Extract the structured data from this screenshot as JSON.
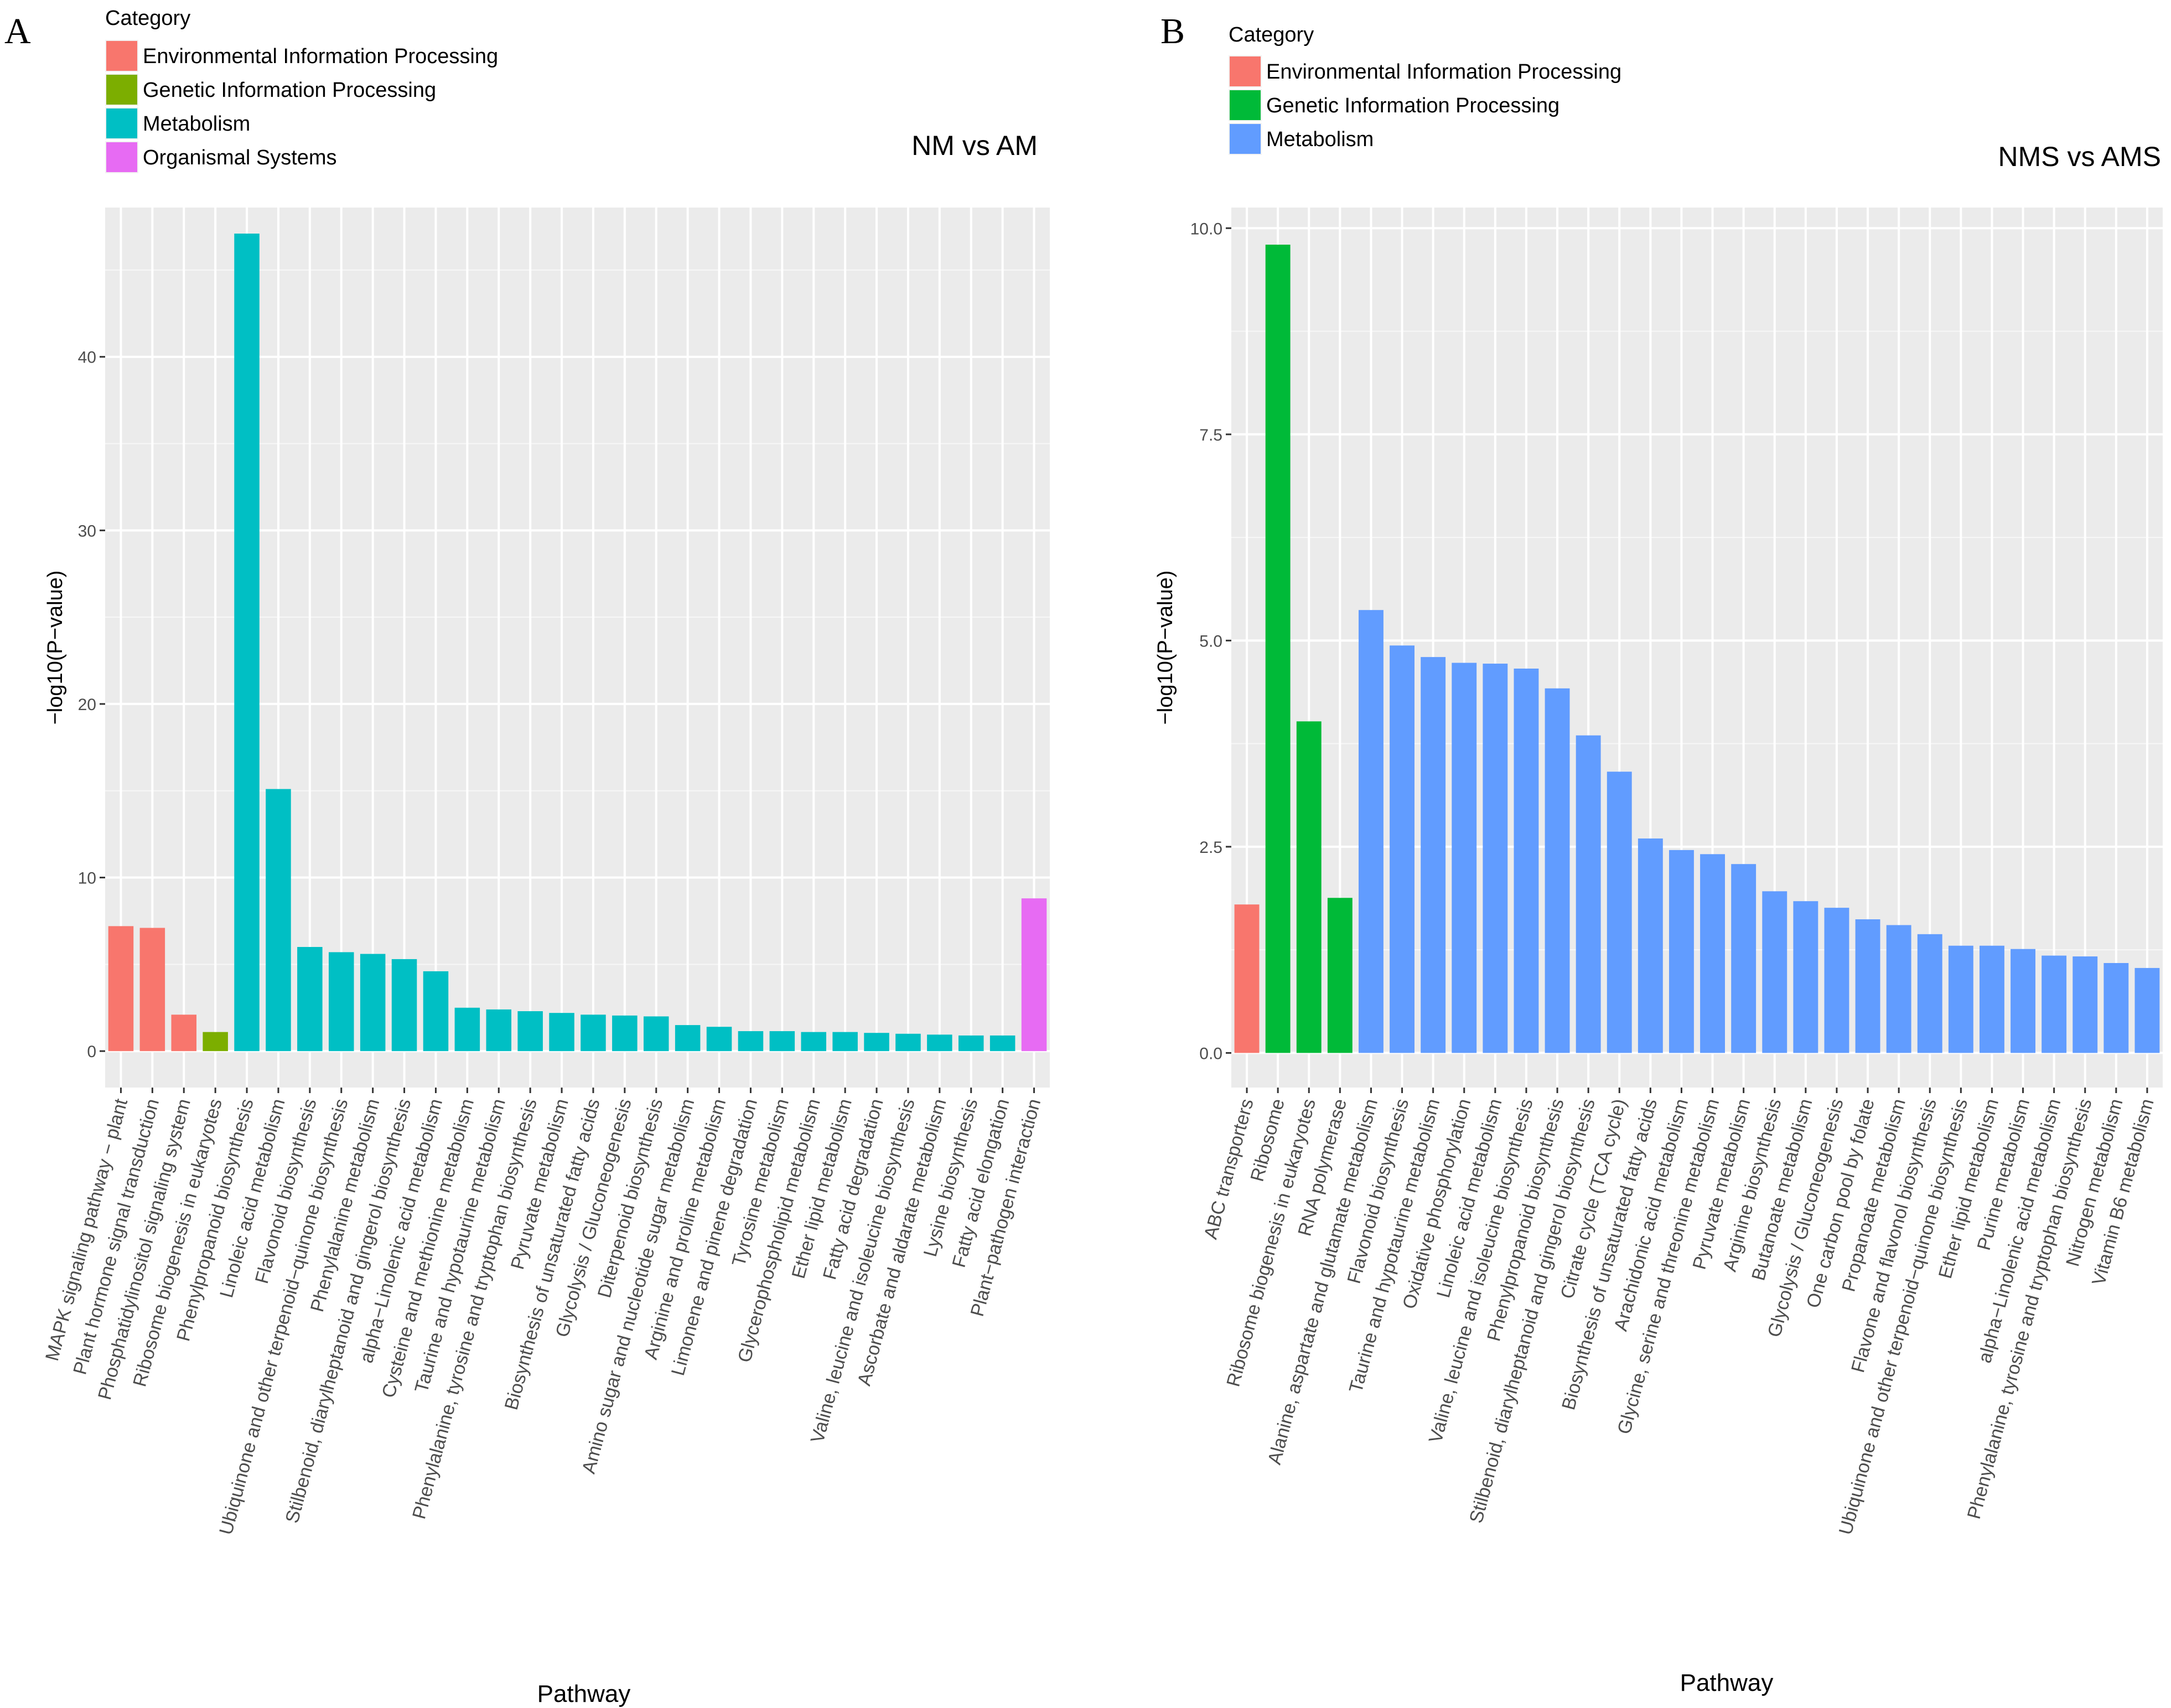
{
  "chart_data": [
    {
      "type": "bar",
      "panel_label": "A",
      "title": "NM vs AM",
      "xlabel": "Pathway",
      "ylabel": "−log10(P−value)",
      "ylim": [
        -2.1,
        48.6
      ],
      "yticks": [
        0,
        10,
        20,
        30,
        40
      ],
      "grid": true,
      "legend_title": "Category",
      "legend_position": "top-left",
      "legend": [
        {
          "label": "Environmental Information Processing",
          "color": "#F8766D"
        },
        {
          "label": "Genetic Information Processing",
          "color": "#7CAE00"
        },
        {
          "label": "Metabolism",
          "color": "#00BFC4"
        },
        {
          "label": "Organismal Systems",
          "color": "#E76BF3"
        }
      ],
      "categories": [
        "MAPK signaling pathway − plant",
        "Plant hormone signal transduction",
        "Phosphatidylinositol signaling system",
        "Ribosome biogenesis in eukaryotes",
        "Phenylpropanoid biosynthesis",
        "Linoleic acid metabolism",
        "Flavonoid biosynthesis",
        "Ubiquinone and other terpenoid−quinone biosynthesis",
        "Phenylalanine metabolism",
        "Stilbenoid, diarylheptanoid and gingerol biosynthesis",
        "alpha−Linolenic acid metabolism",
        "Cysteine and methionine metabolism",
        "Taurine and hypotaurine metabolism",
        "Phenylalanine, tyrosine and tryptophan biosynthesis",
        "Pyruvate metabolism",
        "Biosynthesis of unsaturated fatty acids",
        "Glycolysis / Gluconeogenesis",
        "Diterpenoid biosynthesis",
        "Amino sugar and nucleotide sugar metabolism",
        "Arginine and proline metabolism",
        "Limonene and pinene degradation",
        "Tyrosine metabolism",
        "Glycerophospholipid metabolism",
        "Ether lipid metabolism",
        "Fatty acid degradation",
        "Valine, leucine and isoleucine biosynthesis",
        "Ascorbate and aldarate metabolism",
        "Lysine biosynthesis",
        "Fatty acid elongation",
        "Plant−pathogen interaction"
      ],
      "values": [
        7.2,
        7.1,
        2.1,
        1.1,
        47.1,
        15.1,
        6.0,
        5.7,
        5.6,
        5.3,
        4.6,
        2.5,
        2.4,
        2.3,
        2.2,
        2.1,
        2.05,
        2.0,
        1.5,
        1.4,
        1.15,
        1.15,
        1.1,
        1.1,
        1.05,
        1.0,
        0.95,
        0.9,
        0.9,
        8.8
      ],
      "category_index": [
        0,
        0,
        0,
        1,
        2,
        2,
        2,
        2,
        2,
        2,
        2,
        2,
        2,
        2,
        2,
        2,
        2,
        2,
        2,
        2,
        2,
        2,
        2,
        2,
        2,
        2,
        2,
        2,
        2,
        3
      ]
    },
    {
      "type": "bar",
      "panel_label": "B",
      "title": "NMS vs AMS",
      "xlabel": "Pathway",
      "ylabel": "−log10(P−value)",
      "ylim": [
        -0.42,
        10.25
      ],
      "yticks": [
        "0.0",
        "2.5",
        "5.0",
        "7.5",
        "10.0"
      ],
      "grid": true,
      "legend_title": "Category",
      "legend_position": "top-left",
      "legend": [
        {
          "label": "Environmental Information Processing",
          "color": "#F8766D"
        },
        {
          "label": "Genetic Information Processing",
          "color": "#00BA38"
        },
        {
          "label": "Metabolism",
          "color": "#619CFF"
        }
      ],
      "categories": [
        "ABC transporters",
        "Ribosome",
        "Ribosome biogenesis in eukaryotes",
        "RNA polymerase",
        "Alanine, aspartate and glutamate metabolism",
        "Flavonoid biosynthesis",
        "Taurine and hypotaurine metabolism",
        "Oxidative phosphorylation",
        "Linoleic acid metabolism",
        "Valine, leucine and isoleucine biosynthesis",
        "Phenylpropanoid biosynthesis",
        "Stilbenoid, diarylheptanoid and gingerol biosynthesis",
        "Citrate cycle (TCA cycle)",
        "Biosynthesis of unsaturated fatty acids",
        "Arachidonic acid metabolism",
        "Glycine, serine and threonine metabolism",
        "Pyruvate metabolism",
        "Arginine biosynthesis",
        "Butanoate metabolism",
        "Glycolysis / Gluconeogenesis",
        "One carbon pool by folate",
        "Propanoate metabolism",
        "Flavone and flavonol biosynthesis",
        "Ubiquinone and other terpenoid−quinone biosynthesis",
        "Ether lipid metabolism",
        "Purine metabolism",
        "alpha−Linolenic acid metabolism",
        "Phenylalanine, tyrosine and tryptophan biosynthesis",
        "Nitrogen metabolism",
        "Vitamin B6 metabolism"
      ],
      "values": [
        1.8,
        9.8,
        4.02,
        1.88,
        5.37,
        4.94,
        4.8,
        4.73,
        4.72,
        4.66,
        4.42,
        3.85,
        3.41,
        2.6,
        2.46,
        2.41,
        2.29,
        1.96,
        1.84,
        1.76,
        1.62,
        1.55,
        1.44,
        1.3,
        1.3,
        1.26,
        1.18,
        1.17,
        1.09,
        1.03
      ],
      "category_index": [
        0,
        1,
        1,
        1,
        2,
        2,
        2,
        2,
        2,
        2,
        2,
        2,
        2,
        2,
        2,
        2,
        2,
        2,
        2,
        2,
        2,
        2,
        2,
        2,
        2,
        2,
        2,
        2,
        2,
        2
      ]
    }
  ]
}
